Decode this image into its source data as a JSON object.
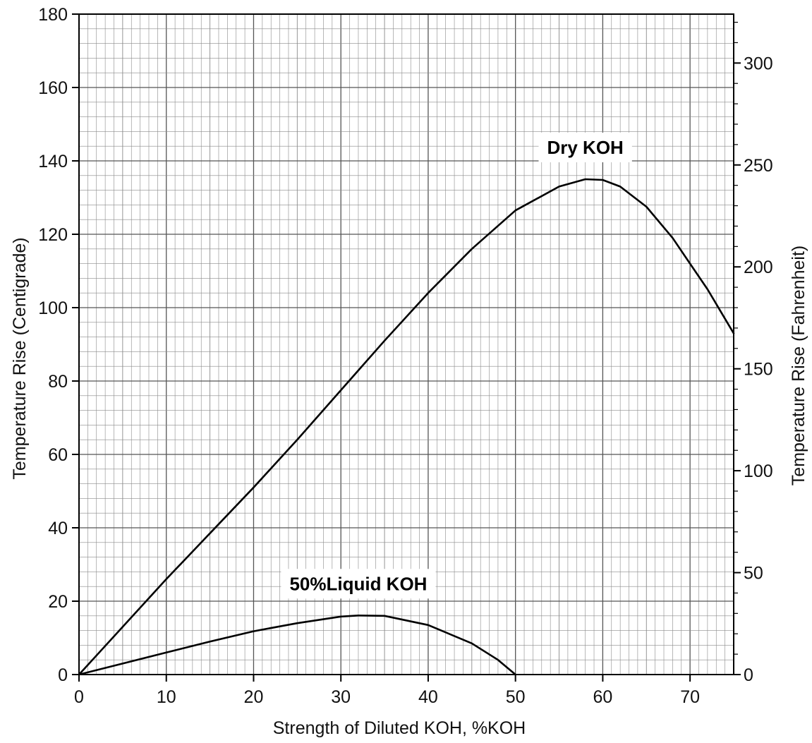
{
  "chart_data": {
    "type": "line",
    "xlabel": "Strength of Diluted KOH,   %KOH",
    "ylabel": "Temperature Rise (Centigrade)",
    "y2label": "Temperature Rise (Fahrenheit)",
    "xlim": [
      0,
      75
    ],
    "ylim": [
      0,
      180
    ],
    "y2lim": [
      0,
      324
    ],
    "x_ticks": [
      0,
      10,
      20,
      30,
      40,
      50,
      60,
      70
    ],
    "y_ticks": [
      0,
      20,
      40,
      60,
      80,
      100,
      120,
      140,
      160,
      180
    ],
    "y2_ticks": [
      0,
      50,
      100,
      150,
      200,
      250,
      300
    ],
    "x_tick_labels": [
      "0",
      "10",
      "20",
      "30",
      "40",
      "50",
      "60",
      "70"
    ],
    "y_tick_labels": [
      "0",
      "20",
      "40",
      "60",
      "80",
      "100",
      "120",
      "140",
      "160",
      "180"
    ],
    "y2_tick_labels": [
      "0",
      "50",
      "100",
      "150",
      "200",
      "250",
      "300"
    ],
    "grid": true,
    "colors": {
      "background": "#ffffff",
      "grid": "#8a8a8a",
      "line": "#000000",
      "text": "#111111"
    },
    "series": [
      {
        "name": "Dry KOH",
        "x": [
          0,
          5,
          10,
          15,
          20,
          25,
          30,
          35,
          40,
          45,
          50,
          55,
          58,
          60,
          62,
          65,
          68,
          70,
          72,
          75
        ],
        "y": [
          0,
          13,
          26,
          38.5,
          51,
          64,
          77.5,
          91,
          104,
          116,
          126.5,
          133,
          135,
          134.8,
          133,
          127.5,
          119,
          112,
          105,
          93
        ]
      },
      {
        "name": "50%Liquid KOH",
        "x": [
          0,
          5,
          10,
          15,
          20,
          25,
          30,
          32,
          35,
          40,
          45,
          48,
          50
        ],
        "y": [
          0,
          3,
          6,
          9,
          11.8,
          14,
          15.8,
          16.1,
          16,
          13.5,
          8.5,
          4,
          0
        ]
      }
    ]
  }
}
